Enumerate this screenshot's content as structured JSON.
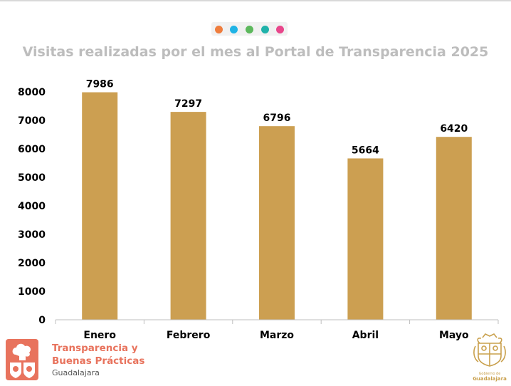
{
  "colors": {
    "bar": "#cc9f51",
    "title": "#bdbdbd",
    "axis_text": "#000000",
    "brand": "#e8735d",
    "seal": "#c9a04c",
    "dots": [
      "#ef7d3d",
      "#1fb3e5",
      "#5cb85c",
      "#20b2aa",
      "#e8468b"
    ]
  },
  "chart_data": {
    "type": "bar",
    "title": "Visitas realizadas por el mes al Portal de Transparencia 2025",
    "categories": [
      "Enero",
      "Febrero",
      "Marzo",
      "Abril",
      "Mayo"
    ],
    "values": [
      7986,
      7297,
      6796,
      5664,
      6420
    ],
    "xlabel": "",
    "ylabel": "",
    "ylim": [
      0,
      8000
    ],
    "yticks": [
      0,
      1000,
      2000,
      3000,
      4000,
      5000,
      6000,
      7000,
      8000
    ],
    "data_labels": true,
    "grid": false,
    "legend": "none"
  },
  "footer": {
    "brand_line1": "Transparencia y",
    "brand_line2": "Buenas Prácticas",
    "brand_line3": "Guadalajara",
    "seal_line1": "Gobierno de",
    "seal_line2": "Guadalajara",
    "brand_logo_icon": "transparency-emblem-icon",
    "seal_icon": "guadalajara-coat-of-arms-icon"
  }
}
